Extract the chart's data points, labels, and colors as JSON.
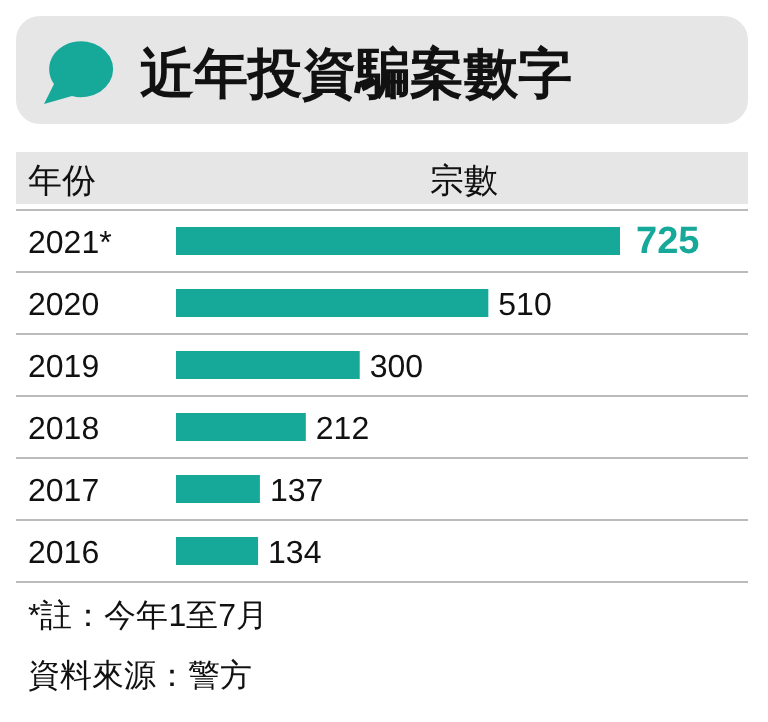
{
  "chart_data": {
    "type": "bar",
    "orientation": "horizontal",
    "title": "近年投資騙案數字",
    "ylabel": "年份",
    "xlabel": "宗數",
    "categories": [
      "2021*",
      "2020",
      "2019",
      "2018",
      "2017",
      "2016"
    ],
    "values": [
      725,
      510,
      300,
      212,
      137,
      134
    ],
    "color": "#16a99a",
    "data_labels": true,
    "annotations": [
      "*註：今年1至7月",
      "資料來源：警方"
    ]
  }
}
